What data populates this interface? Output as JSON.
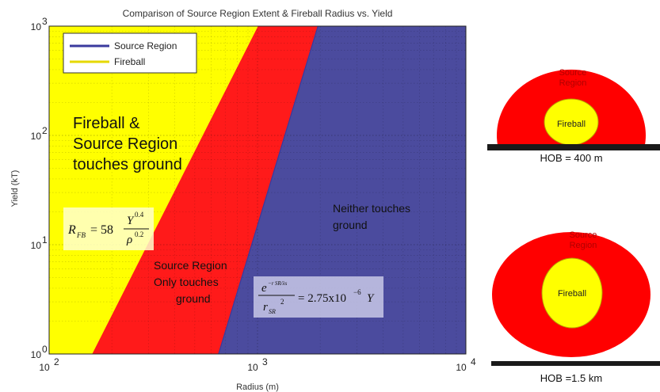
{
  "chart_data": {
    "type": "area",
    "title": "Comparison of Source Region Extent & Fireball Radius vs. Yield",
    "xlabel": "Radius (m)",
    "ylabel": "Yield (kT)",
    "xscale": "log",
    "yscale": "log",
    "xlim": [
      100,
      10000
    ],
    "ylim": [
      1,
      1000
    ],
    "x_ticks": [
      {
        "base": "10",
        "exp": "2"
      },
      {
        "base": "10",
        "exp": "3"
      },
      {
        "base": "10",
        "exp": "4"
      }
    ],
    "y_ticks": [
      {
        "base": "10",
        "exp": "0"
      },
      {
        "base": "10",
        "exp": "1"
      },
      {
        "base": "10",
        "exp": "2"
      },
      {
        "base": "10",
        "exp": "3"
      }
    ],
    "grid": true,
    "legend_position": "top-left",
    "series": [
      {
        "name": "Source Region",
        "color": "#3a3a9e",
        "x": [
          650,
          1950
        ],
        "y": [
          1,
          1000
        ]
      },
      {
        "name": "Fireball",
        "color": "#ffff00",
        "x": [
          160,
          1000
        ],
        "y": [
          1,
          1000
        ]
      }
    ],
    "region_colors": {
      "yellow": "#ffff00",
      "red": "#ff1a1a",
      "blue": "#4b4b9e"
    },
    "annotations": {
      "yellow": [
        "Fireball &",
        "Source Region",
        "touches ground"
      ],
      "red": [
        "Source Region",
        "Only touches",
        "ground"
      ],
      "blue": [
        "Neither touches",
        "ground"
      ]
    },
    "formula_fireball": {
      "lhs": "R",
      "lhs_sub": "FB",
      "coef": "= 58",
      "num": "Y",
      "num_exp": "0.4",
      "den": "ρ",
      "den_exp": "0.2"
    },
    "formula_source": {
      "num": "e",
      "num_exp": "−r SR/λs",
      "den": "r",
      "den_sub": "SR",
      "den_exp": "2",
      "rhs": "= 2.75x10",
      "rhs_exp": "−6",
      "rhs_tail": "Y"
    }
  },
  "side_panels": [
    {
      "source_label": [
        "Source",
        "Region"
      ],
      "fireball_label": "Fireball",
      "caption": "HOB = 400 m"
    },
    {
      "source_label": [
        "Source",
        "Region"
      ],
      "fireball_label": "Fireball",
      "caption": "HOB =1.5 km"
    }
  ]
}
